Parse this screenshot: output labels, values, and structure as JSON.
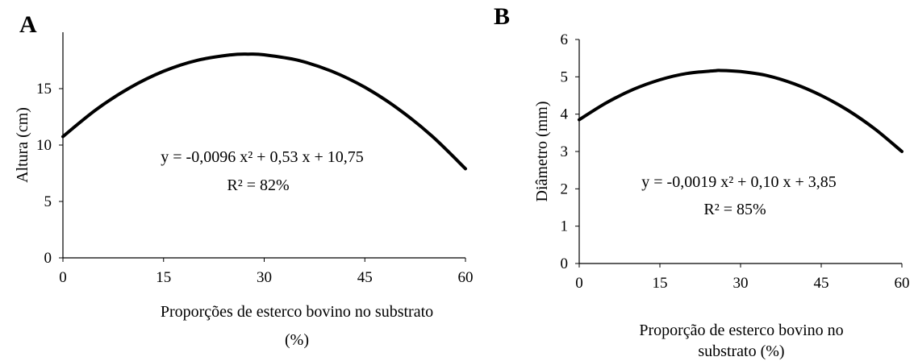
{
  "chart_data": [
    {
      "type": "line",
      "panel": "A",
      "ylabel": "Altura (cm)",
      "xlabel_lines": [
        "Proporções de esterco bovino no substrato",
        "(%)"
      ],
      "xlim": [
        0,
        60
      ],
      "ylim": [
        0,
        20
      ],
      "xticks": [
        "0",
        "15",
        "30",
        "45",
        "60"
      ],
      "yticks": [
        "0",
        "5",
        "10",
        "15"
      ],
      "equation": "y = -0,0096 x² + 0,53 x + 10,75",
      "r2": "R² = 82%",
      "series": [
        {
          "x": [
            0,
            5,
            10,
            15,
            20,
            25,
            27.6,
            30,
            35,
            40,
            45,
            50,
            55,
            60
          ],
          "y": [
            10.75,
            13.16,
            15.09,
            16.54,
            17.51,
            17.99,
            18.06,
            18.0,
            17.52,
            16.56,
            15.12,
            13.2,
            10.8,
            7.9
          ]
        }
      ],
      "grid": false
    },
    {
      "type": "line",
      "panel": "B",
      "ylabel": "Diâmetro (mm)",
      "xlabel_lines": [
        "Proporção de esterco bovino no",
        "substrato (%)"
      ],
      "xlim": [
        0,
        60
      ],
      "ylim": [
        0,
        6
      ],
      "xticks": [
        "0",
        "15",
        "30",
        "45",
        "60"
      ],
      "yticks": [
        "0",
        "1",
        "2",
        "3",
        "4",
        "5",
        "6"
      ],
      "equation": "y = -0,0019 x² +  0,10 x  + 3,85",
      "r2": "R² = 85%",
      "series": [
        {
          "x": [
            0,
            5,
            10,
            15,
            20,
            25,
            26.3,
            30,
            35,
            40,
            45,
            50,
            55,
            60
          ],
          "y": [
            3.85,
            4.3,
            4.66,
            4.92,
            5.09,
            5.16,
            5.17,
            5.14,
            5.03,
            4.81,
            4.5,
            4.1,
            3.6,
            3.0
          ]
        }
      ],
      "grid": false
    }
  ]
}
